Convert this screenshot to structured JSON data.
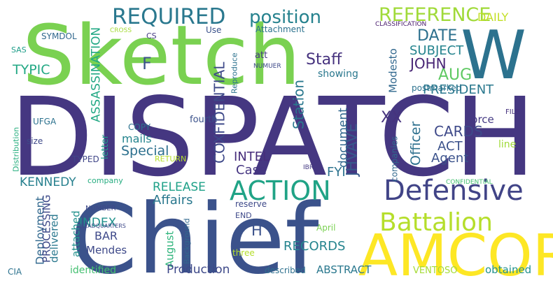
{
  "words": [
    {
      "text": "DISPATCH",
      "color": "#453781"
    },
    {
      "text": "Sketch",
      "color": "#7ad151"
    },
    {
      "text": "Chief",
      "color": "#3b528b"
    },
    {
      "text": "W",
      "color": "#2c728e"
    },
    {
      "text": "AMCORE",
      "color": "#fde725"
    },
    {
      "text": "Defensive",
      "color": "#414487"
    },
    {
      "text": "Battalion",
      "color": "#b5de2b"
    },
    {
      "text": "ACTION",
      "color": "#20a386"
    },
    {
      "text": "REQUIRED",
      "color": "#2a788e"
    },
    {
      "text": "position",
      "color": "#26828e"
    },
    {
      "text": "REFERENCE",
      "color": "#a0da39"
    },
    {
      "text": "DAILY",
      "color": "#c2df23"
    },
    {
      "text": "DATE",
      "color": "#2d708e"
    },
    {
      "text": "SUBJECT",
      "color": "#25848e"
    },
    {
      "text": "AUG",
      "color": "#5ec962"
    },
    {
      "text": "JOHN",
      "color": "#482575"
    },
    {
      "text": "PRESIDENT",
      "color": "#2a788e"
    },
    {
      "text": "postmarked",
      "color": "#2c728e"
    },
    {
      "text": "Staff",
      "color": "#46327e"
    },
    {
      "text": "F",
      "color": "#3b528b"
    },
    {
      "text": "TYPIC",
      "color": "#22a884"
    },
    {
      "text": "ASSASSINATION",
      "color": "#22a884"
    },
    {
      "text": "COXFIDENTIAL",
      "color": "#3e4989"
    },
    {
      "text": "Station",
      "color": "#2a788e"
    },
    {
      "text": "showing",
      "color": "#2a788e"
    },
    {
      "text": "Modesto",
      "color": "#31688e"
    },
    {
      "text": "XX",
      "color": "#46337e"
    },
    {
      "text": "Officer",
      "color": "#2d708e"
    },
    {
      "text": "JHVAVE",
      "color": "#38598c"
    },
    {
      "text": "document",
      "color": "#31688e"
    },
    {
      "text": "CARDS",
      "color": "#3e4989"
    },
    {
      "text": "ACT",
      "color": "#3b528b"
    },
    {
      "text": "Agent",
      "color": "#3b528b"
    },
    {
      "text": "force",
      "color": "#443983"
    },
    {
      "text": "FILE",
      "color": "#46327e"
    },
    {
      "text": "line",
      "color": "#a0da39"
    },
    {
      "text": "Special",
      "color": "#2d708e"
    },
    {
      "text": "mails",
      "color": "#25848e"
    },
    {
      "text": "COPY",
      "color": "#2c728e"
    },
    {
      "text": "fourth",
      "color": "#3b528b"
    },
    {
      "text": "letter",
      "color": "#1f9a8a"
    },
    {
      "text": "INTEL",
      "color": "#472d7b"
    },
    {
      "text": "Case",
      "color": "#453581"
    },
    {
      "text": "FYI",
      "color": "#2c728e"
    },
    {
      "text": "companies",
      "color": "#31688e"
    },
    {
      "text": "IBR",
      "color": "#443983"
    },
    {
      "text": "CONFIDENTIAL",
      "color": "#44bf70"
    },
    {
      "text": "KENNEDY",
      "color": "#27808e"
    },
    {
      "text": "RELEASE",
      "color": "#1fa188"
    },
    {
      "text": "Affairs",
      "color": "#2a788e"
    },
    {
      "text": "INDEX",
      "color": "#21918c"
    },
    {
      "text": "BAR",
      "color": "#3e4989"
    },
    {
      "text": "Mendes",
      "color": "#3e4989"
    },
    {
      "text": "H",
      "color": "#3b528b"
    },
    {
      "text": "RECORDS",
      "color": "#25848e"
    },
    {
      "text": "Deployment",
      "color": "#31688e"
    },
    {
      "text": "delivered",
      "color": "#2a788e"
    },
    {
      "text": "PROCESSING",
      "color": "#3e4989"
    },
    {
      "text": "attached",
      "color": "#21918c"
    },
    {
      "text": "August",
      "color": "#2fb47c"
    },
    {
      "text": "Production",
      "color": "#3e4989"
    },
    {
      "text": "ABSTRACT",
      "color": "#2a788e"
    },
    {
      "text": "VENTOSO",
      "color": "#a5db36"
    },
    {
      "text": "obtained",
      "color": "#21918c"
    },
    {
      "text": "identified",
      "color": "#44bf70"
    },
    {
      "text": "described",
      "color": "#2d708e"
    },
    {
      "text": "three",
      "color": "#b5de2b"
    },
    {
      "text": "April",
      "color": "#7ad151"
    },
    {
      "text": "reserve",
      "color": "#3e4989"
    },
    {
      "text": "END",
      "color": "#3e4989"
    },
    {
      "text": "Background",
      "color": "#31688e"
    },
    {
      "text": "HEADQUARTERS",
      "color": "#3e4989"
    },
    {
      "text": "NUMBER",
      "color": "#3e4989"
    },
    {
      "text": "company",
      "color": "#27ad81"
    },
    {
      "text": "RETURN",
      "color": "#b5de2b"
    },
    {
      "text": "TYPED",
      "color": "#404688"
    },
    {
      "text": "size",
      "color": "#3e4989"
    },
    {
      "text": "UFGA",
      "color": "#2c728e"
    },
    {
      "text": "Distribution",
      "color": "#29af7f"
    },
    {
      "text": "CIA",
      "color": "#2c728e"
    },
    {
      "text": "SYMDOL",
      "color": "#31688e"
    },
    {
      "text": "SAS",
      "color": "#1f9e89"
    },
    {
      "text": "CROSS",
      "color": "#a5db36"
    },
    {
      "text": "CS",
      "color": "#443983"
    },
    {
      "text": "Use",
      "color": "#3b528b"
    },
    {
      "text": "Reproduce",
      "color": "#2c728e"
    },
    {
      "text": "att",
      "color": "#443983"
    },
    {
      "text": "NUMUER",
      "color": "#3e4989"
    },
    {
      "text": "Attachment",
      "color": "#2c728e"
    },
    {
      "text": "CLASSIFICATION",
      "color": "#481a6c"
    }
  ]
}
